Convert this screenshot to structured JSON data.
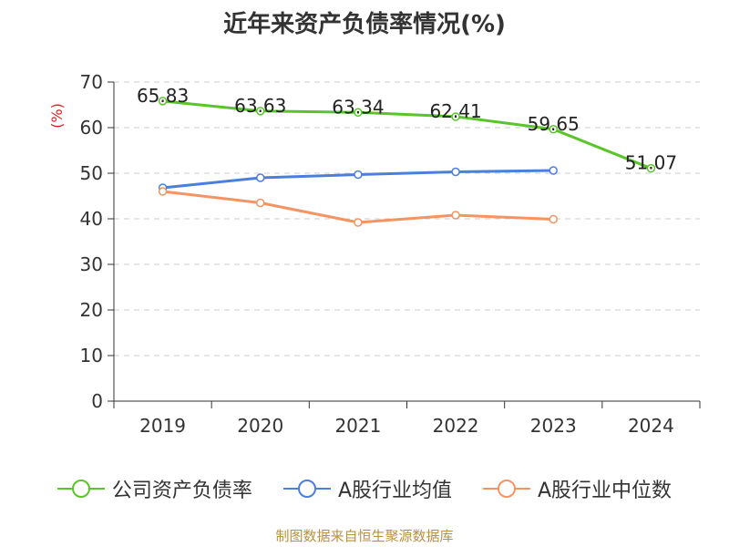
{
  "chart_data": {
    "type": "line",
    "title": "近年来资产负债率情况(%)",
    "ylabel": "(%)",
    "xlabel": "",
    "ylim": [
      0,
      70
    ],
    "yticks": [
      0,
      10,
      20,
      30,
      40,
      50,
      60,
      70
    ],
    "categories": [
      "2019",
      "2020",
      "2021",
      "2022",
      "2023",
      "2024"
    ],
    "grid": true,
    "legend_position": "bottom",
    "series": [
      {
        "name": "公司资产负债率",
        "color": "#5ac52a",
        "values": [
          65.83,
          63.63,
          63.34,
          62.41,
          59.65,
          51.07
        ],
        "labels": [
          "65.83",
          "63.63",
          "63.34",
          "62.41",
          "59.65",
          "51.07"
        ],
        "show_labels": true
      },
      {
        "name": "A股行业均值",
        "color": "#4a7fdc",
        "values": [
          46.8,
          49.0,
          49.7,
          50.3,
          50.6,
          null
        ],
        "show_labels": false
      },
      {
        "name": "A股行业中位数",
        "color": "#f59462",
        "values": [
          46.0,
          43.5,
          39.2,
          40.8,
          39.9,
          null
        ],
        "show_labels": false
      }
    ]
  },
  "colors": {
    "axis": "#333333",
    "grid": "#cccccc",
    "ylabel": "#e02020",
    "footer": "#b8913e"
  },
  "footer": "制图数据来自恒生聚源数据库"
}
